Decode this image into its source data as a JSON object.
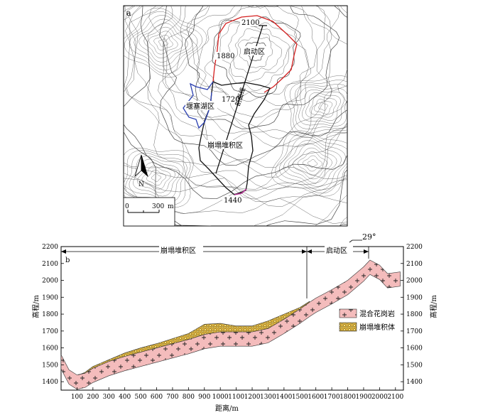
{
  "panel_a": {
    "label": "a",
    "contour_labels": {
      "c2100": "2100",
      "c1880": "1880",
      "c1720": "1720",
      "c1440": "1440"
    },
    "zones": {
      "startup": "启动区",
      "dam_lake": "堰塞湖区",
      "deposit": "崩塌堆积区"
    },
    "section_line_label": "剖面线",
    "north_label": "N",
    "scale": {
      "start": "0",
      "end": "300",
      "unit": "m"
    },
    "colors": {
      "startup_boundary": "#d42020",
      "lake_boundary": "#2a3fb0",
      "deposit_boundary": "#111111",
      "toe": "#b03090"
    }
  },
  "panel_b": {
    "label": "b",
    "zone_labels": {
      "deposit": "崩塌堆积区",
      "startup": "启动区"
    },
    "angle_label": "29°",
    "legend": {
      "granite": "混合花岗岩",
      "deposit": "崩塌堆积体"
    },
    "colors": {
      "granite": "#f2b8b8",
      "deposit": "#e0c050"
    }
  },
  "chart_data": {
    "type": "area",
    "xlabel": "距离/m",
    "ylabel": "高程/m",
    "ylabel_right": "高程/m",
    "x_ticks": [
      "100",
      "200",
      "300",
      "400",
      "500",
      "600",
      "700",
      "800",
      "900",
      "1000",
      "1100",
      "1200",
      "1300",
      "1400",
      "1500",
      "1600",
      "1700",
      "1800",
      "1900",
      "2000",
      "2100"
    ],
    "y_ticks": [
      "1400",
      "1500",
      "1600",
      "1700",
      "1800",
      "1900",
      "2000",
      "2100",
      "2200"
    ],
    "xlim": [
      0,
      2150
    ],
    "ylim": [
      1350,
      2200
    ],
    "series": [
      {
        "name": "混合花岗岩",
        "x": [
          0,
          50,
          100,
          150,
          200,
          300,
          400,
          500,
          600,
          700,
          800,
          900,
          1000,
          1100,
          1200,
          1300,
          1400,
          1500,
          1560,
          1600,
          1700,
          1800,
          1900,
          1940,
          2000,
          2050,
          2130
        ],
        "y": [
          1560,
          1470,
          1440,
          1450,
          1480,
          1520,
          1550,
          1575,
          1600,
          1625,
          1650,
          1680,
          1695,
          1695,
          1695,
          1715,
          1770,
          1830,
          1870,
          1895,
          1945,
          2000,
          2080,
          2120,
          2090,
          2040,
          2050
        ]
      },
      {
        "name": "崩塌堆积体",
        "x": [
          110,
          150,
          200,
          300,
          400,
          500,
          600,
          700,
          800,
          900,
          1000,
          1100,
          1200,
          1300,
          1400,
          1500,
          1560
        ],
        "y": [
          1440,
          1455,
          1490,
          1530,
          1570,
          1600,
          1625,
          1655,
          1685,
          1740,
          1745,
          1730,
          1730,
          1760,
          1800,
          1840,
          1875
        ]
      }
    ],
    "annotations": {
      "zone_boundary_x": 1560,
      "startup_end_x": 1940
    }
  }
}
